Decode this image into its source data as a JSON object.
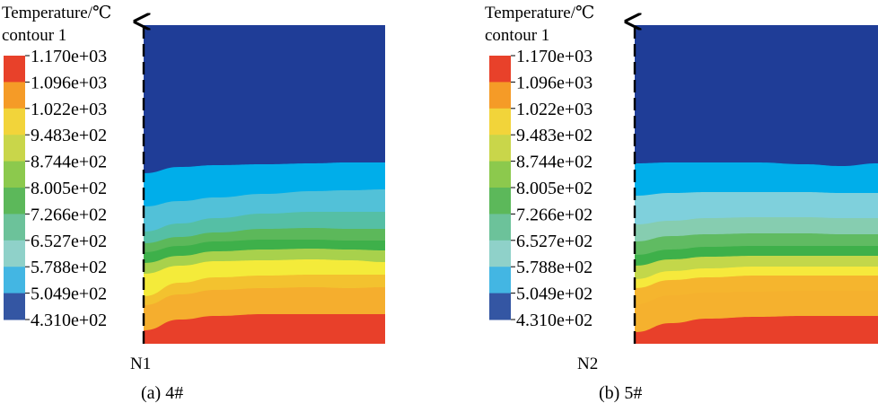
{
  "legend": {
    "title_line1": "Temperature/℃",
    "title_line2": "contour 1",
    "values": [
      "1.170e+03",
      "1.096e+03",
      "1.022e+03",
      "9.483e+02",
      "8.744e+02",
      "8.005e+02",
      "7.266e+02",
      "6.527e+02",
      "5.788e+02",
      "5.049e+02",
      "4.310e+02"
    ],
    "band_colors": [
      "#e8412a",
      "#f59b27",
      "#f2d43a",
      "#c9d64a",
      "#8cc94d",
      "#5cb85a",
      "#6cc29a",
      "#8fd1c9",
      "#43b6e3",
      "#3456a3"
    ]
  },
  "chart_data": [
    {
      "type": "heatmap",
      "title": "(a) 4#",
      "node_label": "N1",
      "zlabel": "Temperature/℃",
      "zlim": [
        431.0,
        1170.0
      ],
      "layers_top_to_bottom": [
        {
          "temperature": 431.0,
          "color": "#1f3d97"
        },
        {
          "temperature": 505.0,
          "color": "#00aeea"
        },
        {
          "temperature": 579.0,
          "color": "#52c1d8"
        },
        {
          "temperature": 653.0,
          "color": "#55bfa5"
        },
        {
          "temperature": 727.0,
          "color": "#5cb85a"
        },
        {
          "temperature": 800.0,
          "color": "#3eb04a"
        },
        {
          "temperature": 874.0,
          "color": "#a8d14c"
        },
        {
          "temperature": 948.0,
          "color": "#f4eb3a"
        },
        {
          "temperature": 1022.0,
          "color": "#f3c22f"
        },
        {
          "temperature": 1096.0,
          "color": "#f5ae2e"
        },
        {
          "temperature": 1170.0,
          "color": "#e8402a"
        }
      ]
    },
    {
      "type": "heatmap",
      "title": "(b) 5#",
      "node_label": "N2",
      "zlabel": "Temperature/℃",
      "zlim": [
        431.0,
        1170.0
      ],
      "layers_top_to_bottom": [
        {
          "temperature": 431.0,
          "color": "#1f3d97"
        },
        {
          "temperature": 505.0,
          "color": "#00aeea"
        },
        {
          "temperature": 579.0,
          "color": "#7fd0dc"
        },
        {
          "temperature": 653.0,
          "color": "#86cdb0"
        },
        {
          "temperature": 727.0,
          "color": "#60bb62"
        },
        {
          "temperature": 800.0,
          "color": "#3eb04a"
        },
        {
          "temperature": 874.0,
          "color": "#c3d74a"
        },
        {
          "temperature": 948.0,
          "color": "#f6e93c"
        },
        {
          "temperature": 1022.0,
          "color": "#f5b52e"
        },
        {
          "temperature": 1096.0,
          "color": "#f5b12e"
        },
        {
          "temperature": 1170.0,
          "color": "#e8402a"
        }
      ]
    }
  ]
}
